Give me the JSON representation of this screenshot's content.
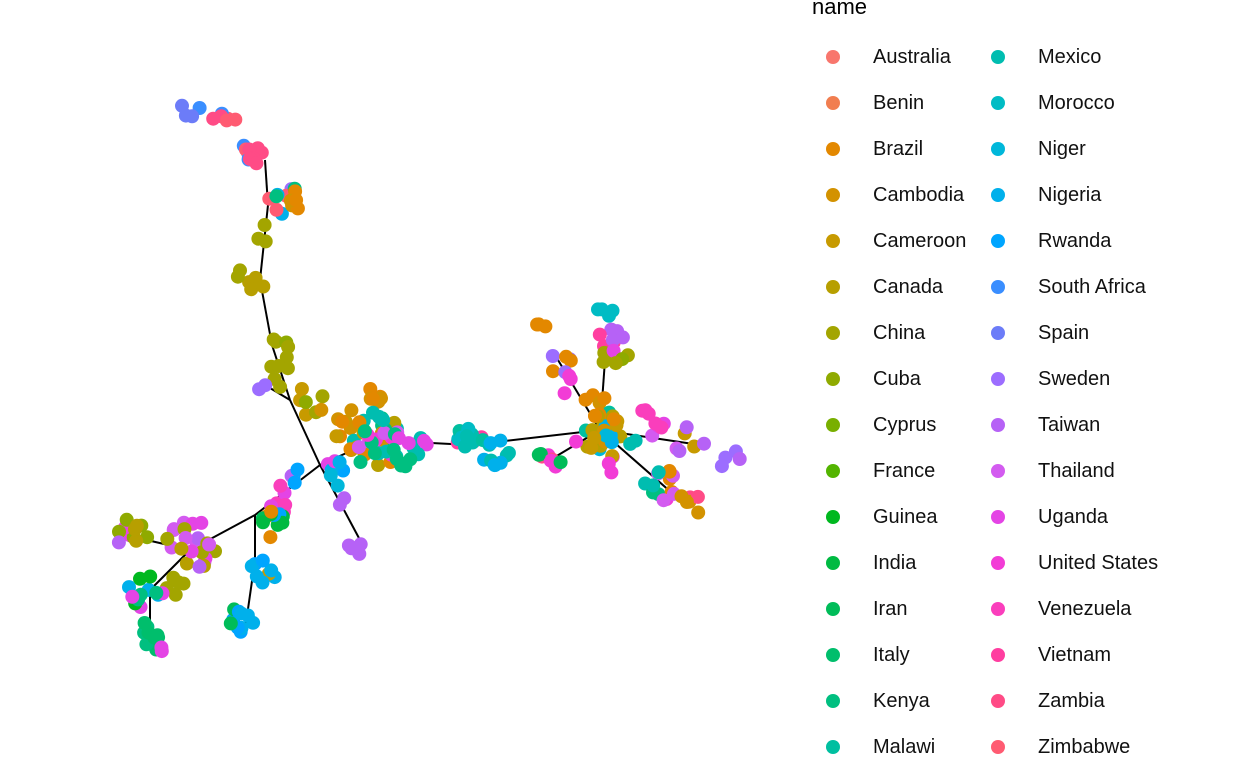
{
  "chart_data": {
    "type": "network",
    "title": "",
    "legend": {
      "title": "name",
      "placement": "right",
      "entries": [
        {
          "name": "Australia",
          "color": "#F8766D"
        },
        {
          "name": "Benin",
          "color": "#F17E50"
        },
        {
          "name": "Brazil",
          "color": "#E38800"
        },
        {
          "name": "Cambodia",
          "color": "#D39200"
        },
        {
          "name": "Cameroon",
          "color": "#C79A00"
        },
        {
          "name": "Canada",
          "color": "#B79F00"
        },
        {
          "name": "China",
          "color": "#A3A500"
        },
        {
          "name": "Cuba",
          "color": "#8FAA00"
        },
        {
          "name": "Cyprus",
          "color": "#78AF00"
        },
        {
          "name": "France",
          "color": "#53B400"
        },
        {
          "name": "Guinea",
          "color": "#00B81F"
        },
        {
          "name": "India",
          "color": "#00BA42"
        },
        {
          "name": "Iran",
          "color": "#00BC59"
        },
        {
          "name": "Italy",
          "color": "#00BE6C"
        },
        {
          "name": "Kenya",
          "color": "#00BF80"
        },
        {
          "name": "Malawi",
          "color": "#00BFA0"
        },
        {
          "name": "Mexico",
          "color": "#00BDB0"
        },
        {
          "name": "Morocco",
          "color": "#00BCC4"
        },
        {
          "name": "Niger",
          "color": "#00B7DA"
        },
        {
          "name": "Nigeria",
          "color": "#00B0EB"
        },
        {
          "name": "Rwanda",
          "color": "#00A5FF"
        },
        {
          "name": "South Africa",
          "color": "#3A8EFF"
        },
        {
          "name": "Spain",
          "color": "#6C7CF8"
        },
        {
          "name": "Sweden",
          "color": "#9C6DFF"
        },
        {
          "name": "Taiwan",
          "color": "#B662F6"
        },
        {
          "name": "Thailand",
          "color": "#D35BF0"
        },
        {
          "name": "Uganda",
          "color": "#E444E5"
        },
        {
          "name": "United States",
          "color": "#F23CD6"
        },
        {
          "name": "Venezuela",
          "color": "#FA3EBC"
        },
        {
          "name": "Vietnam",
          "color": "#FF3EA0"
        },
        {
          "name": "Zambia",
          "color": "#FF4B86"
        },
        {
          "name": "Zimbabwe",
          "color": "#FF5B72"
        }
      ]
    },
    "axes": "none",
    "grid": false
  }
}
